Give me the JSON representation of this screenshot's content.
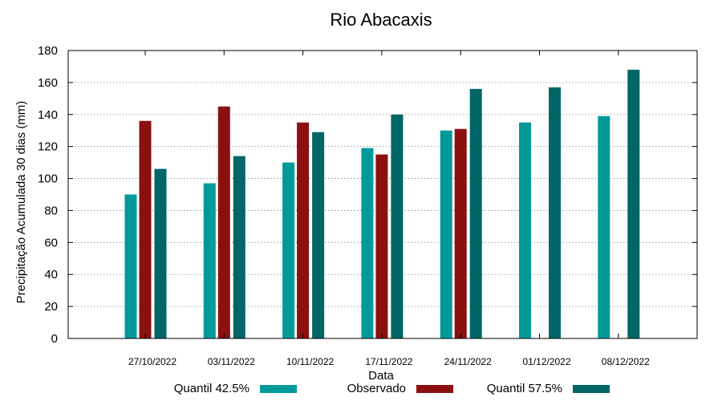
{
  "chart_data": {
    "type": "bar",
    "title": "Rio Abacaxis",
    "xlabel": "Data",
    "ylabel": "Precipitação Acumulada 30 dias (mm)",
    "ylim": [
      0,
      180
    ],
    "yticks": [
      0,
      20,
      40,
      60,
      80,
      100,
      120,
      140,
      160,
      180
    ],
    "grid": true,
    "legend_position": "bottom",
    "categories": [
      "27/10/2022",
      "03/11/2022",
      "10/11/2022",
      "17/11/2022",
      "24/11/2022",
      "01/12/2022",
      "08/12/2022"
    ],
    "series": [
      {
        "name": "Quantil 42.5%",
        "color": "#009999",
        "values": [
          90,
          97,
          110,
          119,
          130,
          135,
          139
        ]
      },
      {
        "name": "Observado",
        "color": "#8b1010",
        "values": [
          136,
          145,
          135,
          115,
          131,
          null,
          null
        ]
      },
      {
        "name": "Quantil 57.5%",
        "color": "#006666",
        "values": [
          106,
          114,
          129,
          140,
          156,
          157,
          168
        ]
      }
    ]
  }
}
